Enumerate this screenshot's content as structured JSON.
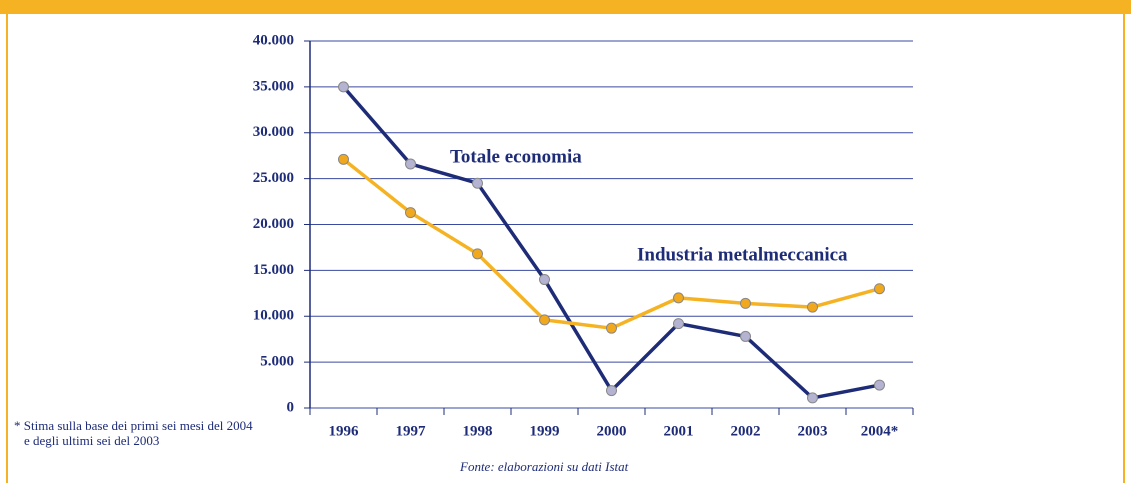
{
  "chart_data": {
    "type": "line",
    "categories": [
      "1996",
      "1997",
      "1998",
      "1999",
      "2000",
      "2001",
      "2002",
      "2003",
      "2004*"
    ],
    "series": [
      {
        "name": "Totale economia",
        "color": "#1e2c78",
        "marker_color": "#b4b4d2",
        "values": [
          35000,
          26600,
          24500,
          14000,
          1900,
          9200,
          7800,
          1100,
          2500
        ]
      },
      {
        "name": "Industria metalmeccanica",
        "color": "#f5b324",
        "marker_color": "#f2a81c",
        "values": [
          27100,
          21300,
          16800,
          9600,
          8700,
          12000,
          11400,
          11000,
          13000
        ]
      }
    ],
    "ylim": [
      0,
      40000
    ],
    "yticks": [
      0,
      {
        "value": 5000,
        "label": "5.000"
      },
      {
        "value": 10000,
        "label": "10.000"
      },
      {
        "value": 15000,
        "label": "15.000"
      },
      {
        "value": 20000,
        "label": "20.000"
      },
      {
        "value": 25000,
        "label": "25.000"
      },
      {
        "value": 30000,
        "label": "30.000"
      },
      {
        "value": 35000,
        "label": "35.000"
      },
      {
        "value": 40000,
        "label": "40.000"
      }
    ],
    "grid": true,
    "footnote": "* Stima sulla base dei primi sei mesi del 2004 e degli ultimi sei del 2003",
    "source": "Fonte: elaborazioni su dati Istat"
  }
}
